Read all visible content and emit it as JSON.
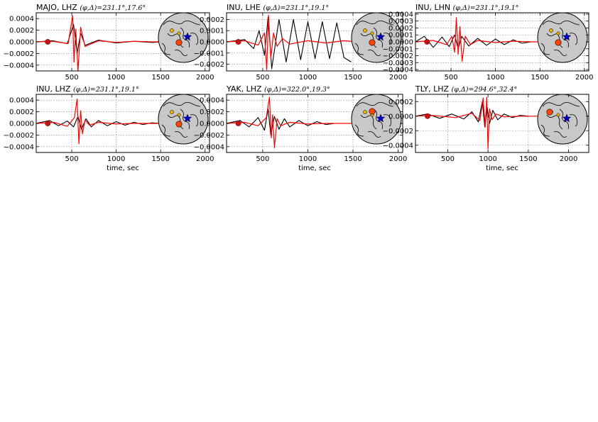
{
  "figure": {
    "xlabel": "time, sec",
    "colors": {
      "observed": "#000000",
      "synthetic": "#ff0000",
      "station": "#ff4500",
      "event": "#0000cc",
      "globe": "#c8c8c8",
      "grid": "#808080"
    }
  },
  "chart_data": [
    {
      "type": "line",
      "title": "MAJO, LHZ",
      "title_params": "(φ,Δ)=231.1°,17.6°",
      "xlim": [
        100,
        2050
      ],
      "ylim": [
        -0.0005,
        0.0005
      ],
      "xticks": [
        500,
        1000,
        1500,
        2000
      ],
      "xtick_labels": [
        "500",
        "1000",
        "1500",
        "2000"
      ],
      "yticks": [
        0.0004,
        0.0002,
        0.0,
        -0.0002,
        -0.0004
      ],
      "ytick_labels": [
        "0.0004",
        "0.0002",
        "0.0000",
        "−0.0002",
        "−0.0004"
      ],
      "show_xlabel": false,
      "grid": true,
      "inset": "globe",
      "marker_x": 230,
      "series": [
        {
          "role": "observed",
          "x": [
            100,
            280,
            450,
            520,
            560,
            600,
            650,
            800,
            1000,
            1200,
            1400,
            1550
          ],
          "y": [
            0,
            2e-05,
            -3e-05,
            0.0003,
            -0.0002,
            0.00015,
            -6e-05,
            3e-05,
            -2e-05,
            1e-05,
            -1e-05,
            0
          ]
        },
        {
          "role": "synthetic",
          "x": [
            100,
            280,
            460,
            510,
            525,
            545,
            570,
            600,
            650,
            800,
            1000,
            1200,
            1400,
            1550,
            2050
          ],
          "y": [
            0,
            1e-05,
            -3e-05,
            0.00045,
            -0.00035,
            0.00022,
            -0.0005,
            0.00025,
            -8e-05,
            2e-05,
            -1e-05,
            1e-05,
            0,
            0,
            0
          ]
        }
      ]
    },
    {
      "type": "line",
      "title": "INU, LHE",
      "title_params": "(φ,Δ)=231.1°,19.1°",
      "xlim": [
        100,
        2050
      ],
      "ylim": [
        -0.00026,
        0.00026
      ],
      "xticks": [
        500,
        1000,
        1500,
        2000
      ],
      "xtick_labels": [
        "500",
        "1000",
        "1500",
        "2000"
      ],
      "yticks": [
        0.0002,
        0.0001,
        0.0,
        -0.0001,
        -0.0002
      ],
      "ytick_labels": [
        "0.0002",
        "0.0001",
        "0.0000",
        "−0.0001",
        "−0.0002"
      ],
      "show_xlabel": false,
      "grid": true,
      "inset": "globe",
      "marker_x": 230,
      "series": [
        {
          "role": "observed",
          "x": [
            100,
            300,
            400,
            460,
            520,
            560,
            600,
            680,
            760,
            840,
            920,
            1000,
            1080,
            1160,
            1240,
            1320,
            1400,
            1480
          ],
          "y": [
            0,
            2e-05,
            -6e-05,
            0.0001,
            -0.00012,
            0.00022,
            -0.00024,
            0.0002,
            -0.00018,
            0.0002,
            -0.00016,
            0.00018,
            -0.00015,
            0.00018,
            -0.00015,
            0.00017,
            -0.00014,
            -0.00018
          ]
        },
        {
          "role": "synthetic",
          "x": [
            100,
            300,
            450,
            520,
            545,
            565,
            590,
            620,
            660,
            720,
            800,
            1000,
            1200,
            1400,
            1550,
            2050
          ],
          "y": [
            0,
            1e-05,
            -3e-05,
            8e-05,
            -0.00025,
            0.00024,
            -0.00015,
            8e-05,
            -4e-05,
            3e-05,
            -2e-05,
            1e-05,
            -1e-05,
            1e-05,
            0,
            0
          ]
        }
      ]
    },
    {
      "type": "line",
      "title": "INU, LHN",
      "title_params": "(φ,Δ)=231.1°,19.1°",
      "xlim": [
        100,
        2050
      ],
      "ylim": [
        -0.00042,
        0.00042
      ],
      "xticks": [
        500,
        1000,
        1500,
        2000
      ],
      "xtick_labels": [
        "500",
        "1000",
        "1500",
        "2000"
      ],
      "yticks": [
        0.0004,
        0.0003,
        0.0002,
        0.0001,
        0.0,
        -0.0001,
        -0.0002,
        -0.0003,
        -0.0004
      ],
      "ytick_labels": [
        "0.0004",
        "0.0003",
        "0.0002",
        "0.0001",
        "0.0000",
        "−0.0001",
        "−0.0002",
        "−0.0003",
        "−0.0004"
      ],
      "show_xlabel": false,
      "grid": true,
      "inset": "globe",
      "marker_x": 230,
      "series": [
        {
          "role": "observed",
          "x": [
            100,
            200,
            300,
            400,
            480,
            540,
            580,
            620,
            700,
            800,
            900,
            1000,
            1100,
            1200,
            1300,
            1400
          ],
          "y": [
            0,
            8e-05,
            -8e-05,
            7e-05,
            -7e-05,
            0.0001,
            -0.0001,
            8e-05,
            -6e-05,
            5e-05,
            -5e-05,
            4e-05,
            -4e-05,
            3e-05,
            -2e-05,
            0
          ]
        },
        {
          "role": "synthetic",
          "x": [
            100,
            300,
            450,
            510,
            540,
            560,
            580,
            600,
            625,
            660,
            720,
            800,
            1000,
            1200,
            1400,
            2050
          ],
          "y": [
            0,
            2e-05,
            -4e-05,
            8e-05,
            -0.00015,
            0.00035,
            -0.00018,
            0.00022,
            -0.00028,
            8e-05,
            -4e-05,
            2e-05,
            -1e-05,
            1e-05,
            0,
            0
          ]
        }
      ]
    },
    {
      "type": "line",
      "title": "INU, LHZ",
      "title_params": "(φ,Δ)=231.1°,19.1°",
      "xlim": [
        100,
        2050
      ],
      "ylim": [
        -0.0005,
        0.0005
      ],
      "xticks": [
        500,
        1000,
        1500,
        2000
      ],
      "xtick_labels": [
        "500",
        "1000",
        "1500",
        "2000"
      ],
      "yticks": [
        0.0004,
        0.0002,
        0.0,
        -0.0002,
        -0.0004
      ],
      "ytick_labels": [
        "0.0004",
        "0.0002",
        "0.0000",
        "−0.0002",
        "−0.0004"
      ],
      "show_xlabel": true,
      "grid": true,
      "inset": "globe",
      "marker_x": 230,
      "series": [
        {
          "role": "observed",
          "x": [
            100,
            250,
            350,
            450,
            520,
            570,
            610,
            660,
            720,
            800,
            900,
            1000,
            1100,
            1200,
            1300,
            1400,
            1500
          ],
          "y": [
            0,
            5e-05,
            -4e-05,
            4e-05,
            -6e-05,
            0.00012,
            -0.0001,
            8e-05,
            -6e-05,
            5e-05,
            -4e-05,
            3e-05,
            -3e-05,
            2e-05,
            -2e-05,
            1e-05,
            0
          ]
        },
        {
          "role": "synthetic",
          "x": [
            100,
            300,
            450,
            530,
            560,
            580,
            600,
            620,
            650,
            700,
            800,
            1000,
            1200,
            1500,
            2050
          ],
          "y": [
            0,
            2e-05,
            -5e-05,
            0.0001,
            0.00042,
            -0.00035,
            0.00022,
            -0.00018,
            6e-05,
            -3e-05,
            2e-05,
            -1e-05,
            0,
            0,
            0
          ]
        }
      ]
    },
    {
      "type": "line",
      "title": "YAK, LHZ",
      "title_params": "(φ,Δ)=322.0°,19.3°",
      "xlim": [
        100,
        2050
      ],
      "ylim": [
        -0.0005,
        0.0005
      ],
      "xticks": [
        500,
        1000,
        1500,
        2000
      ],
      "xtick_labels": [
        "500",
        "1000",
        "1500",
        "2000"
      ],
      "yticks": [
        0.0004,
        0.0002,
        0.0,
        -0.0002,
        -0.0004
      ],
      "ytick_labels": [
        "0.0004",
        "0.0002",
        "0.0000",
        "−0.0002",
        "−0.0004"
      ],
      "show_xlabel": true,
      "grid": true,
      "inset": "globe",
      "marker_x": 230,
      "series": [
        {
          "role": "observed",
          "x": [
            100,
            250,
            350,
            450,
            520,
            560,
            590,
            630,
            680,
            740,
            800,
            900,
            1000,
            1100,
            1200,
            1300
          ],
          "y": [
            0,
            5e-05,
            -6e-05,
            0.0001,
            -0.00012,
            0.00025,
            -0.0002,
            0.00012,
            -0.0001,
            8e-05,
            -6e-05,
            5e-05,
            -4e-05,
            3e-05,
            -2e-05,
            0
          ]
        },
        {
          "role": "synthetic",
          "x": [
            100,
            300,
            450,
            540,
            575,
            595,
            610,
            630,
            660,
            700,
            800,
            1000,
            1200,
            1500,
            2050
          ],
          "y": [
            0,
            2e-05,
            -4e-05,
            0.0001,
            0.00045,
            -0.00025,
            0.00015,
            -0.00042,
            8e-05,
            -4e-05,
            2e-05,
            -1e-05,
            0,
            0,
            0
          ]
        }
      ]
    },
    {
      "type": "line",
      "title": "TLY, LHZ",
      "title_params": "(φ,Δ)=294.6°,32.4°",
      "xlim": [
        100,
        2250
      ],
      "ylim": [
        -0.0005,
        0.0003
      ],
      "xticks": [
        500,
        1000,
        1500,
        2000
      ],
      "xtick_labels": [
        "500",
        "1000",
        "1500",
        "2000"
      ],
      "yticks": [
        0.0002,
        0.0,
        -0.0002,
        -0.0004
      ],
      "ytick_labels": [
        "0.0002",
        "0.0000",
        "−0.0002",
        "−0.0004"
      ],
      "show_xlabel": true,
      "grid": true,
      "inset": "globe",
      "marker_x": 250,
      "series": [
        {
          "role": "observed",
          "x": [
            100,
            250,
            400,
            550,
            700,
            800,
            880,
            930,
            960,
            990,
            1020,
            1060,
            1120,
            1200,
            1300,
            1400,
            1500
          ],
          "y": [
            0,
            3e-05,
            -3e-05,
            3e-05,
            -4e-05,
            6e-05,
            -8e-05,
            0.0002,
            -0.00015,
            0.00012,
            -0.0001,
            8e-05,
            -5e-05,
            3e-05,
            -2e-05,
            1e-05,
            0
          ]
        },
        {
          "role": "synthetic",
          "x": [
            100,
            300,
            600,
            800,
            900,
            940,
            965,
            985,
            1000,
            1020,
            1050,
            1100,
            1200,
            1400,
            2250
          ],
          "y": [
            0,
            1e-05,
            -2e-05,
            4e-05,
            -6e-05,
            0.00025,
            -0.00015,
            0.00026,
            -0.00045,
            0.0001,
            -5e-05,
            3e-05,
            -1e-05,
            0,
            0
          ]
        }
      ]
    }
  ]
}
